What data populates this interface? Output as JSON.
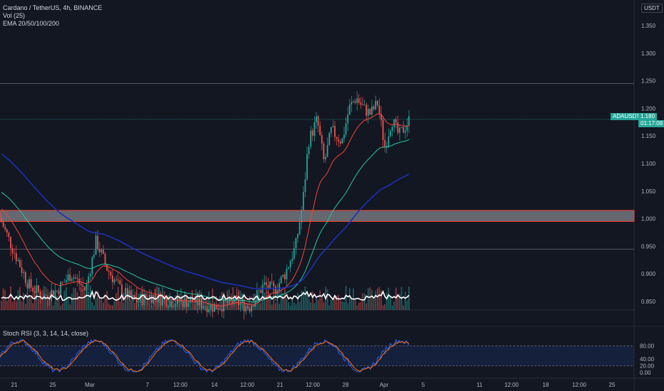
{
  "header": {
    "symbol_line": "Cardano / TetherUS, 4h, BINANCE",
    "vol_line": "Vol (25)",
    "ema_line": "EMA 20/50/100/200"
  },
  "currency_button": "USDT",
  "price_badge": {
    "ticker": "ADAUSDT",
    "price": "1.180",
    "countdown": "01:17:08"
  },
  "stoch_legend": "Stoch RSI (3, 3, 14, 14, close)",
  "price_axis": [
    "1.350",
    "1.300",
    "1.250",
    "1.200",
    "1.150",
    "1.100",
    "1.050",
    "1.000",
    "0.950",
    "0.900",
    "0.850"
  ],
  "stoch_axis": [
    "80.00",
    "40.00",
    "20.00",
    "0.00"
  ],
  "time_axis": [
    "21",
    "25",
    "Mar",
    "7",
    "12:00",
    "14",
    "12:00",
    "21",
    "12:00",
    "28",
    "Apr",
    "5",
    "11",
    "12:00",
    "18",
    "12:00",
    "25"
  ],
  "colors": {
    "background": "#131722",
    "candle_up": "#26a69a",
    "candle_down": "#ef5350",
    "ema20": "#f44336",
    "ema50": "#26c6a0",
    "ema100": "#1c2fb8",
    "ema200": "#ffffff",
    "stoch_k": "#2962ff",
    "stoch_d": "#ff6d00",
    "zone": "#f44336",
    "badge": "#26a69a"
  },
  "chart_data": {
    "type": "candlestick",
    "instrument": "ADAUSDT",
    "horizontal_levels": [
      1.245,
      1.18,
      0.945
    ],
    "support_zone": [
      0.995,
      1.015
    ],
    "last_price": 1.18,
    "price_range": [
      0.82,
      1.37
    ],
    "stoch_levels": [
      80,
      20
    ],
    "stoch_range": [
      0,
      100
    ]
  }
}
